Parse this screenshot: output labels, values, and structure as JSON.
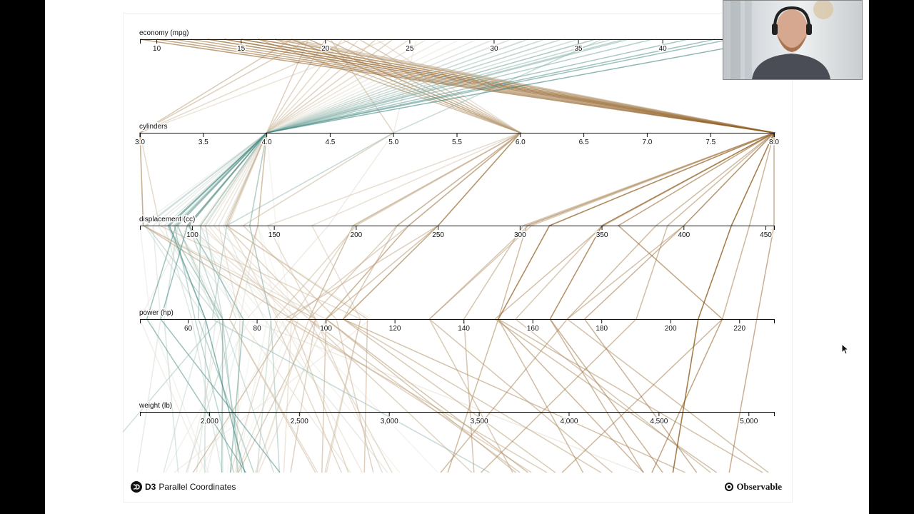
{
  "footer": {
    "d3_label": "D3",
    "title": "Parallel Coordinates",
    "brand": "Observable"
  },
  "colors": {
    "low": "#2e7d76",
    "mid": "#f3f1ea",
    "high": "#8a5516",
    "axis": "#111111"
  },
  "chart_data": {
    "type": "parallel-coordinates",
    "color_by": "economy (mpg)",
    "axes": [
      {
        "key": "mpg",
        "label": "economy (mpg)",
        "domain": [
          9,
          46.6
        ],
        "ticks": [
          10,
          15,
          20,
          25,
          30,
          35,
          40
        ],
        "tick_labels": [
          "10",
          "15",
          "20",
          "25",
          "30",
          "35",
          "40"
        ]
      },
      {
        "key": "cyl",
        "label": "cylinders",
        "domain": [
          3,
          8
        ],
        "ticks": [
          3.0,
          3.5,
          4.0,
          4.5,
          5.0,
          5.5,
          6.0,
          6.5,
          7.0,
          7.5,
          8.0
        ],
        "tick_labels": [
          "3.0",
          "3.5",
          "4.0",
          "4.5",
          "5.0",
          "5.5",
          "6.0",
          "6.5",
          "7.0",
          "7.5",
          "8.0"
        ]
      },
      {
        "key": "disp",
        "label": "displacement (cc)",
        "domain": [
          68,
          455
        ],
        "ticks": [
          100,
          150,
          200,
          250,
          300,
          350,
          400,
          450
        ],
        "tick_labels": [
          "100",
          "150",
          "200",
          "250",
          "300",
          "350",
          "400",
          "450"
        ]
      },
      {
        "key": "hp",
        "label": "power (hp)",
        "domain": [
          46,
          230
        ],
        "ticks": [
          60,
          80,
          100,
          120,
          140,
          160,
          180,
          200,
          220
        ],
        "tick_labels": [
          "60",
          "80",
          "100",
          "120",
          "140",
          "160",
          "180",
          "200",
          "220"
        ]
      },
      {
        "key": "wt",
        "label": "weight (lb)",
        "domain": [
          1613,
          5140
        ],
        "ticks": [
          2000,
          2500,
          3000,
          3500,
          4000,
          4500,
          5000
        ],
        "tick_labels": [
          "2,000",
          "2,500",
          "3,000",
          "3,500",
          "4,000",
          "4,500",
          "5,000"
        ]
      }
    ],
    "series": [
      {
        "values": [
          9,
          8,
          429,
          208,
          4633
        ]
      },
      {
        "values": [
          10,
          8,
          360,
          215,
          4615
        ]
      },
      {
        "values": [
          11,
          8,
          429,
          208,
          4633
        ]
      },
      {
        "values": [
          12,
          8,
          455,
          225,
          4951
        ]
      },
      {
        "values": [
          13,
          8,
          350,
          165,
          4274
        ]
      },
      {
        "values": [
          13,
          8,
          400,
          175,
          4464
        ]
      },
      {
        "values": [
          14,
          8,
          440,
          215,
          4312
        ]
      },
      {
        "values": [
          14,
          8,
          318,
          150,
          4096
        ]
      },
      {
        "values": [
          14,
          8,
          350,
          165,
          4209
        ]
      },
      {
        "values": [
          15,
          8,
          318,
          150,
          3436
        ]
      },
      {
        "values": [
          15,
          8,
          304,
          150,
          3892
        ]
      },
      {
        "values": [
          15,
          8,
          390,
          190,
          3850
        ]
      },
      {
        "values": [
          15,
          8,
          383,
          170,
          3563
        ]
      },
      {
        "values": [
          16,
          8,
          400,
          170,
          4668
        ]
      },
      {
        "values": [
          16,
          8,
          318,
          150,
          4498
        ]
      },
      {
        "values": [
          16,
          6,
          250,
          105,
          3897
        ]
      },
      {
        "values": [
          16,
          8,
          351,
          149,
          4335
        ]
      },
      {
        "values": [
          17,
          8,
          302,
          140,
          3449
        ]
      },
      {
        "values": [
          17,
          8,
          305,
          130,
          3840
        ]
      },
      {
        "values": [
          17,
          6,
          250,
          100,
          3329
        ]
      },
      {
        "values": [
          17.5,
          8,
          350,
          155,
          4360
        ]
      },
      {
        "values": [
          18,
          6,
          232,
          100,
          3288
        ]
      },
      {
        "values": [
          18,
          8,
          307,
          130,
          3504
        ]
      },
      {
        "values": [
          18,
          6,
          250,
          105,
          3459
        ]
      },
      {
        "values": [
          18,
          6,
          225,
          105,
          3613
        ]
      },
      {
        "values": [
          19,
          6,
          232,
          100,
          2634
        ]
      },
      {
        "values": [
          19,
          6,
          250,
          88,
          3302
        ]
      },
      {
        "values": [
          19,
          4,
          121,
          112,
          2868
        ]
      },
      {
        "values": [
          19,
          6,
          225,
          95,
          3264
        ]
      },
      {
        "values": [
          20,
          6,
          198,
          95,
          3102
        ]
      },
      {
        "values": [
          20,
          6,
          232,
          90,
          3265
        ]
      },
      {
        "values": [
          20,
          4,
          120,
          97,
          2506
        ]
      },
      {
        "values": [
          21,
          6,
          200,
          85,
          2587
        ]
      },
      {
        "values": [
          21,
          4,
          140,
          72,
          2401
        ]
      },
      {
        "values": [
          21,
          6,
          199,
          90,
          2648
        ]
      },
      {
        "values": [
          22,
          6,
          198,
          95,
          2833
        ]
      },
      {
        "values": [
          22,
          4,
          140,
          72,
          2408
        ]
      },
      {
        "values": [
          22,
          6,
          146,
          97,
          2815
        ]
      },
      {
        "values": [
          23,
          4,
          122,
          86,
          2220
        ]
      },
      {
        "values": [
          23,
          4,
          97,
          92,
          2288
        ]
      },
      {
        "values": [
          23,
          6,
          173,
          110,
          2725
        ]
      },
      {
        "values": [
          24,
          4,
          113,
          95,
          2372
        ]
      },
      {
        "values": [
          24,
          4,
          107,
          90,
          2430
        ]
      },
      {
        "values": [
          24,
          4,
          116,
          75,
          2158
        ]
      },
      {
        "values": [
          25,
          4,
          104,
          95,
          2375
        ]
      },
      {
        "values": [
          25,
          4,
          110,
          87,
          2672
        ]
      },
      {
        "values": [
          25,
          4,
          140,
          75,
          2542
        ]
      },
      {
        "values": [
          26,
          4,
          97,
          46,
          1835
        ]
      },
      {
        "values": [
          26,
          4,
          121,
          113,
          2234
        ]
      },
      {
        "values": [
          26,
          4,
          91,
          70,
          1955
        ]
      },
      {
        "values": [
          27,
          4,
          97,
          88,
          2130
        ]
      },
      {
        "values": [
          27,
          4,
          140,
          86,
          2790
        ]
      },
      {
        "values": [
          27,
          4,
          151,
          90,
          2950
        ]
      },
      {
        "values": [
          28,
          4,
          97,
          75,
          2155
        ]
      },
      {
        "values": [
          28,
          4,
          140,
          90,
          2264
        ]
      },
      {
        "values": [
          28,
          4,
          98,
          80,
          2164
        ]
      },
      {
        "values": [
          29,
          4,
          97,
          78,
          1940
        ]
      },
      {
        "values": [
          29,
          4,
          68,
          49,
          1867
        ]
      },
      {
        "values": [
          29,
          4,
          98,
          83,
          2219
        ]
      },
      {
        "values": [
          30,
          4,
          88,
          76,
          2065
        ]
      },
      {
        "values": [
          30,
          4,
          79,
          70,
          2074
        ]
      },
      {
        "values": [
          30,
          4,
          135,
          84,
          2295
        ]
      },
      {
        "values": [
          31,
          4,
          76,
          52,
          1649
        ]
      },
      {
        "values": [
          31,
          4,
          91,
          68,
          1970
        ]
      },
      {
        "values": [
          31,
          4,
          119,
          82,
          2720
        ]
      },
      {
        "values": [
          32,
          4,
          71,
          65,
          1836
        ]
      },
      {
        "values": [
          32,
          4,
          83,
          61,
          2003
        ]
      },
      {
        "values": [
          32,
          4,
          135,
          84,
          2295
        ]
      },
      {
        "values": [
          33,
          4,
          91,
          53,
          1795
        ]
      },
      {
        "values": [
          33,
          4,
          105,
          74,
          1980
        ]
      },
      {
        "values": [
          34,
          4,
          108,
          70,
          2245
        ]
      },
      {
        "values": [
          34,
          4,
          85,
          65,
          1975
        ]
      },
      {
        "values": [
          35,
          4,
          72,
          69,
          1613
        ]
      },
      {
        "values": [
          36,
          4,
          98,
          70,
          2125
        ]
      },
      {
        "values": [
          36,
          4,
          135,
          84,
          2370
        ]
      },
      {
        "values": [
          37,
          4,
          91,
          69,
          2130
        ]
      },
      {
        "values": [
          37.7,
          4,
          89,
          62,
          2050
        ]
      },
      {
        "values": [
          38,
          4,
          105,
          63,
          2125
        ]
      },
      {
        "values": [
          39.4,
          4,
          85,
          70,
          2070
        ]
      },
      {
        "values": [
          41.5,
          4,
          98,
          76,
          2144
        ]
      },
      {
        "values": [
          43.1,
          4,
          90,
          48,
          1985
        ]
      },
      {
        "values": [
          44,
          4,
          97,
          52,
          2130
        ]
      },
      {
        "values": [
          46.6,
          4,
          86,
          65,
          2110
        ]
      },
      {
        "values": [
          18,
          3,
          70,
          90,
          2124
        ]
      },
      {
        "values": [
          19,
          3,
          70,
          97,
          2330
        ]
      },
      {
        "values": [
          23.7,
          3,
          70,
          100,
          2420
        ]
      },
      {
        "values": [
          21.5,
          3,
          80,
          110,
          2720
        ]
      },
      {
        "values": [
          20.3,
          5,
          131,
          103,
          2830
        ]
      },
      {
        "values": [
          25.4,
          5,
          183,
          77,
          3530
        ]
      },
      {
        "values": [
          36.4,
          5,
          121,
          67,
          2950
        ]
      }
    ]
  }
}
